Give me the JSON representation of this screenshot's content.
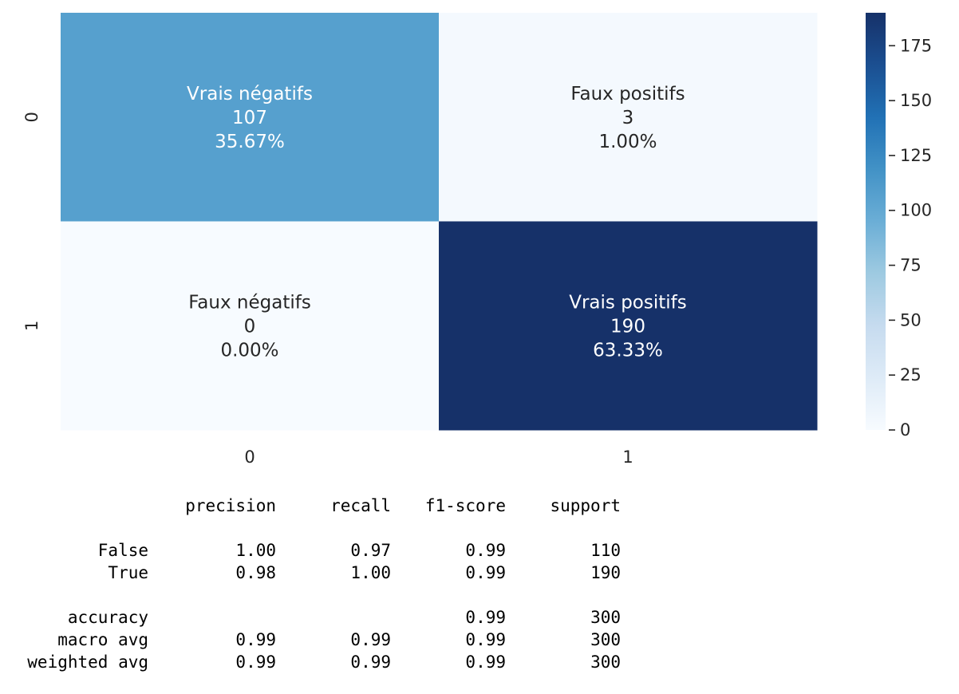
{
  "chart_data": {
    "type": "heatmap",
    "x_categories": [
      "0",
      "1"
    ],
    "y_categories": [
      "0",
      "1"
    ],
    "cells": [
      [
        {
          "group": "Vrais négatifs",
          "count": 107,
          "percent": "35.67%"
        },
        {
          "group": "Faux positifs",
          "count": 3,
          "percent": "1.00%"
        }
      ],
      [
        {
          "group": "Faux négatifs",
          "count": 0,
          "percent": "0.00%"
        },
        {
          "group": "Vrais positifs",
          "count": 190,
          "percent": "63.33%"
        }
      ]
    ],
    "colormap": "Blues",
    "colorbar": {
      "vmin": 0,
      "vmax": 190,
      "ticks": [
        0,
        25,
        50,
        75,
        100,
        125,
        150,
        175
      ],
      "placement": "right"
    },
    "colors": {
      "low": "#f7fbff",
      "mid": "#6baed6",
      "high": "#163169",
      "text_dark": "#262626",
      "text_light": "#ffffff"
    }
  },
  "report": {
    "headers": [
      "precision",
      "recall",
      "f1-score",
      "support"
    ],
    "rows": [
      {
        "label": "False",
        "precision": "1.00",
        "recall": "0.97",
        "f1": "0.99",
        "support": "110"
      },
      {
        "label": "True",
        "precision": "0.98",
        "recall": "1.00",
        "f1": "0.99",
        "support": "190"
      },
      {
        "label": "accuracy",
        "precision": "",
        "recall": "",
        "f1": "0.99",
        "support": "300"
      },
      {
        "label": "macro avg",
        "precision": "0.99",
        "recall": "0.99",
        "f1": "0.99",
        "support": "300"
      },
      {
        "label": "weighted avg",
        "precision": "0.99",
        "recall": "0.99",
        "f1": "0.99",
        "support": "300"
      }
    ]
  }
}
